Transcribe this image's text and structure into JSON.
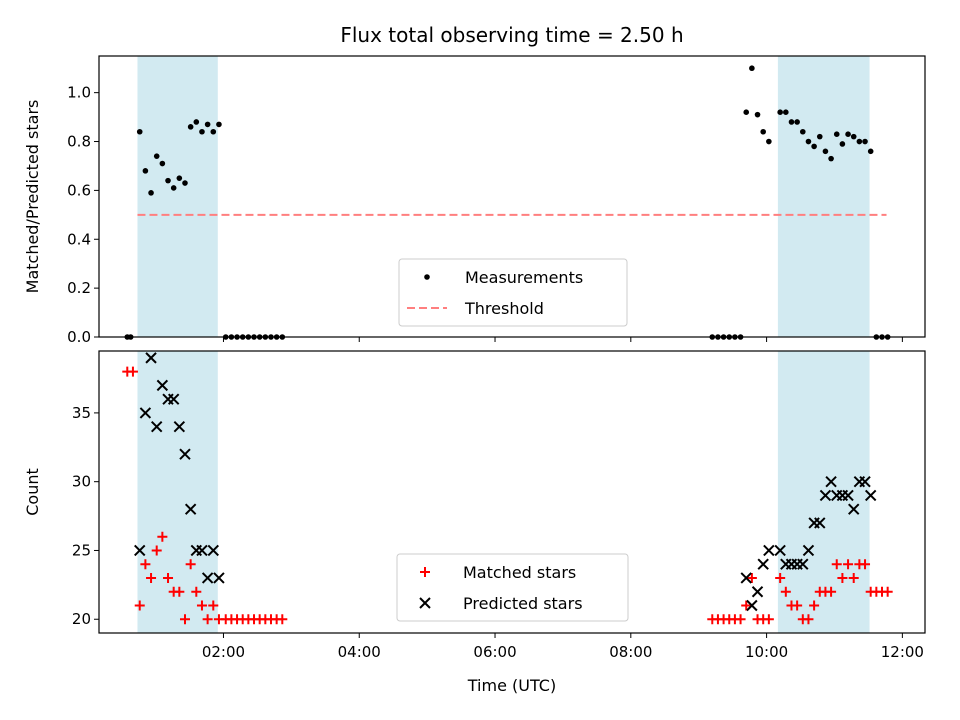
{
  "title": "Flux total observing time = 2.50 h",
  "colors": {
    "measurement": "#000000",
    "threshold": "#ff7f7f",
    "matched": "#ff0000",
    "predicted": "#000000",
    "shade": "#add8e6"
  },
  "chart_data": [
    {
      "type": "scatter",
      "ylabel": "Matched/Predicted stars",
      "ylim": [
        0,
        1.15
      ],
      "yticks": [
        "0.0",
        "0.2",
        "0.4",
        "0.6",
        "0.8",
        "1.0"
      ],
      "xlim": [
        "00:10",
        "12:20"
      ],
      "shaded_intervals": [
        [
          "00:44",
          "01:55"
        ],
        [
          "10:10",
          "11:31"
        ]
      ],
      "legend": {
        "position": "bottom-center",
        "entries": [
          "Measurements",
          "Threshold"
        ]
      },
      "threshold": {
        "name": "Threshold",
        "value": 0.5,
        "x_range": [
          "00:44",
          "11:46"
        ]
      },
      "series": [
        {
          "name": "Measurements",
          "marker": "dot",
          "points": [
            [
              "00:35",
              0.0
            ],
            [
              "00:38",
              0.0
            ],
            [
              "00:46",
              0.84
            ],
            [
              "00:51",
              0.68
            ],
            [
              "00:56",
              0.59
            ],
            [
              "01:01",
              0.74
            ],
            [
              "01:06",
              0.71
            ],
            [
              "01:11",
              0.64
            ],
            [
              "01:16",
              0.61
            ],
            [
              "01:21",
              0.65
            ],
            [
              "01:26",
              0.63
            ],
            [
              "01:31",
              0.86
            ],
            [
              "01:36",
              0.88
            ],
            [
              "01:41",
              0.84
            ],
            [
              "01:46",
              0.87
            ],
            [
              "01:51",
              0.84
            ],
            [
              "01:56",
              0.87
            ],
            [
              "02:02",
              0.0
            ],
            [
              "02:07",
              0.0
            ],
            [
              "02:12",
              0.0
            ],
            [
              "02:17",
              0.0
            ],
            [
              "02:22",
              0.0
            ],
            [
              "02:27",
              0.0
            ],
            [
              "02:32",
              0.0
            ],
            [
              "02:37",
              0.0
            ],
            [
              "02:42",
              0.0
            ],
            [
              "02:47",
              0.0
            ],
            [
              "02:52",
              0.0
            ],
            [
              "09:12",
              0.0
            ],
            [
              "09:17",
              0.0
            ],
            [
              "09:22",
              0.0
            ],
            [
              "09:27",
              0.0
            ],
            [
              "09:32",
              0.0
            ],
            [
              "09:37",
              0.0
            ],
            [
              "09:42",
              0.92
            ],
            [
              "09:47",
              1.1
            ],
            [
              "09:52",
              0.91
            ],
            [
              "09:57",
              0.84
            ],
            [
              "10:02",
              0.8
            ],
            [
              "10:12",
              0.92
            ],
            [
              "10:17",
              0.92
            ],
            [
              "10:22",
              0.88
            ],
            [
              "10:27",
              0.88
            ],
            [
              "10:32",
              0.84
            ],
            [
              "10:37",
              0.8
            ],
            [
              "10:42",
              0.78
            ],
            [
              "10:47",
              0.82
            ],
            [
              "10:52",
              0.76
            ],
            [
              "10:57",
              0.73
            ],
            [
              "11:02",
              0.83
            ],
            [
              "11:07",
              0.79
            ],
            [
              "11:12",
              0.83
            ],
            [
              "11:17",
              0.82
            ],
            [
              "11:22",
              0.8
            ],
            [
              "11:27",
              0.8
            ],
            [
              "11:32",
              0.76
            ],
            [
              "11:37",
              0.0
            ],
            [
              "11:42",
              0.0
            ],
            [
              "11:47",
              0.0
            ]
          ]
        }
      ]
    },
    {
      "type": "scatter",
      "xlabel": "Time (UTC)",
      "ylabel": "Count",
      "ylim": [
        19,
        39.5
      ],
      "yticks": [
        "20",
        "25",
        "30",
        "35"
      ],
      "xlim": [
        "00:10",
        "12:20"
      ],
      "xticks": [
        "02:00",
        "04:00",
        "06:00",
        "08:00",
        "10:00",
        "12:00"
      ],
      "shaded_intervals": [
        [
          "00:44",
          "01:55"
        ],
        [
          "10:10",
          "11:31"
        ]
      ],
      "legend": {
        "position": "bottom-center",
        "entries": [
          "Matched stars",
          "Predicted stars"
        ]
      },
      "series": [
        {
          "name": "Matched stars",
          "marker": "plus",
          "points": [
            [
              "00:35",
              38
            ],
            [
              "00:40",
              38
            ],
            [
              "00:46",
              21
            ],
            [
              "00:51",
              24
            ],
            [
              "00:56",
              23
            ],
            [
              "01:01",
              25
            ],
            [
              "01:06",
              26
            ],
            [
              "01:11",
              23
            ],
            [
              "01:16",
              22
            ],
            [
              "01:21",
              22
            ],
            [
              "01:26",
              20
            ],
            [
              "01:31",
              24
            ],
            [
              "01:36",
              22
            ],
            [
              "01:41",
              21
            ],
            [
              "01:46",
              20
            ],
            [
              "01:51",
              21
            ],
            [
              "01:56",
              20
            ],
            [
              "02:02",
              20
            ],
            [
              "02:07",
              20
            ],
            [
              "02:12",
              20
            ],
            [
              "02:17",
              20
            ],
            [
              "02:22",
              20
            ],
            [
              "02:27",
              20
            ],
            [
              "02:32",
              20
            ],
            [
              "02:37",
              20
            ],
            [
              "02:42",
              20
            ],
            [
              "02:47",
              20
            ],
            [
              "02:52",
              20
            ],
            [
              "09:12",
              20
            ],
            [
              "09:17",
              20
            ],
            [
              "09:22",
              20
            ],
            [
              "09:27",
              20
            ],
            [
              "09:32",
              20
            ],
            [
              "09:37",
              20
            ],
            [
              "09:42",
              21
            ],
            [
              "09:47",
              23
            ],
            [
              "09:52",
              20
            ],
            [
              "09:57",
              20
            ],
            [
              "10:02",
              20
            ],
            [
              "10:12",
              23
            ],
            [
              "10:17",
              22
            ],
            [
              "10:22",
              21
            ],
            [
              "10:27",
              21
            ],
            [
              "10:32",
              20
            ],
            [
              "10:37",
              20
            ],
            [
              "10:42",
              21
            ],
            [
              "10:47",
              22
            ],
            [
              "10:52",
              22
            ],
            [
              "10:57",
              22
            ],
            [
              "11:02",
              24
            ],
            [
              "11:07",
              23
            ],
            [
              "11:12",
              24
            ],
            [
              "11:17",
              23
            ],
            [
              "11:22",
              24
            ],
            [
              "11:27",
              24
            ],
            [
              "11:32",
              22
            ],
            [
              "11:37",
              22
            ],
            [
              "11:42",
              22
            ],
            [
              "11:47",
              22
            ]
          ]
        },
        {
          "name": "Predicted stars",
          "marker": "x",
          "points": [
            [
              "00:46",
              25
            ],
            [
              "00:51",
              35
            ],
            [
              "00:56",
              39
            ],
            [
              "01:01",
              34
            ],
            [
              "01:06",
              37
            ],
            [
              "01:11",
              36
            ],
            [
              "01:16",
              36
            ],
            [
              "01:21",
              34
            ],
            [
              "01:26",
              32
            ],
            [
              "01:31",
              28
            ],
            [
              "01:36",
              25
            ],
            [
              "01:41",
              25
            ],
            [
              "01:46",
              23
            ],
            [
              "01:51",
              25
            ],
            [
              "01:56",
              23
            ],
            [
              "09:42",
              23
            ],
            [
              "09:47",
              21
            ],
            [
              "09:52",
              22
            ],
            [
              "09:57",
              24
            ],
            [
              "10:02",
              25
            ],
            [
              "10:12",
              25
            ],
            [
              "10:17",
              24
            ],
            [
              "10:22",
              24
            ],
            [
              "10:27",
              24
            ],
            [
              "10:32",
              24
            ],
            [
              "10:37",
              25
            ],
            [
              "10:42",
              27
            ],
            [
              "10:47",
              27
            ],
            [
              "10:52",
              29
            ],
            [
              "10:57",
              30
            ],
            [
              "11:02",
              29
            ],
            [
              "11:07",
              29
            ],
            [
              "11:12",
              29
            ],
            [
              "11:17",
              28
            ],
            [
              "11:22",
              30
            ],
            [
              "11:27",
              30
            ],
            [
              "11:32",
              29
            ]
          ]
        }
      ]
    }
  ]
}
